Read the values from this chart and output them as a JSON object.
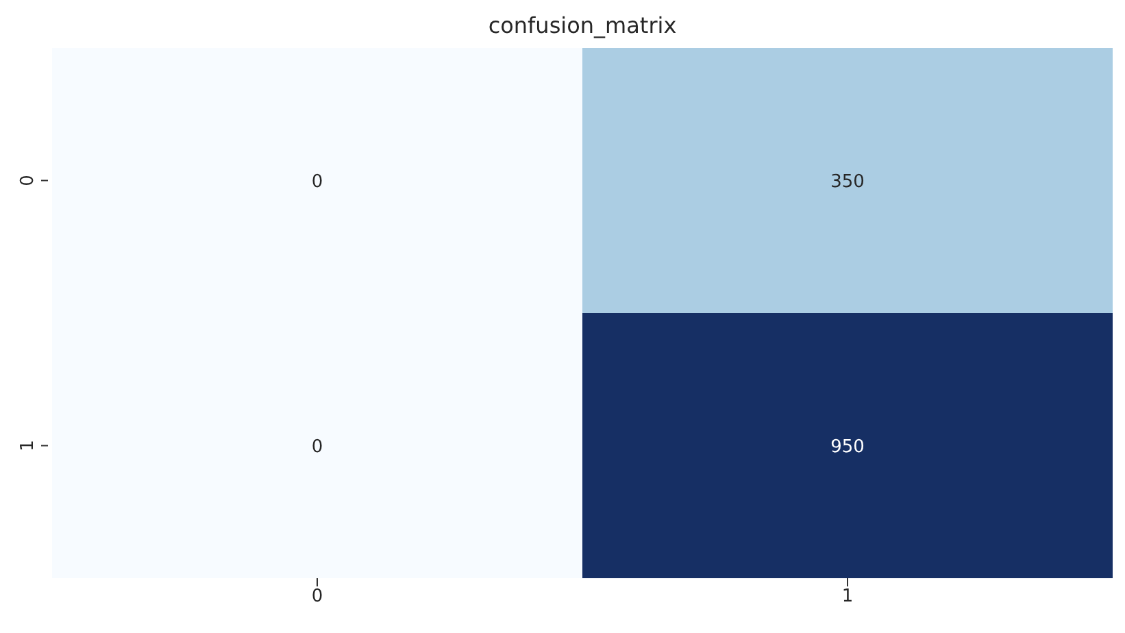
{
  "chart_data": {
    "type": "heatmap",
    "title": "confusion_matrix",
    "categories": [
      "0",
      "1"
    ],
    "y_categories": [
      "0",
      "1"
    ],
    "cells": [
      [
        0,
        350
      ],
      [
        0,
        950
      ]
    ],
    "colors": [
      [
        "#f7fbff",
        "#abcde3"
      ],
      [
        "#f7fbff",
        "#162f64"
      ]
    ],
    "data_labels": true
  }
}
